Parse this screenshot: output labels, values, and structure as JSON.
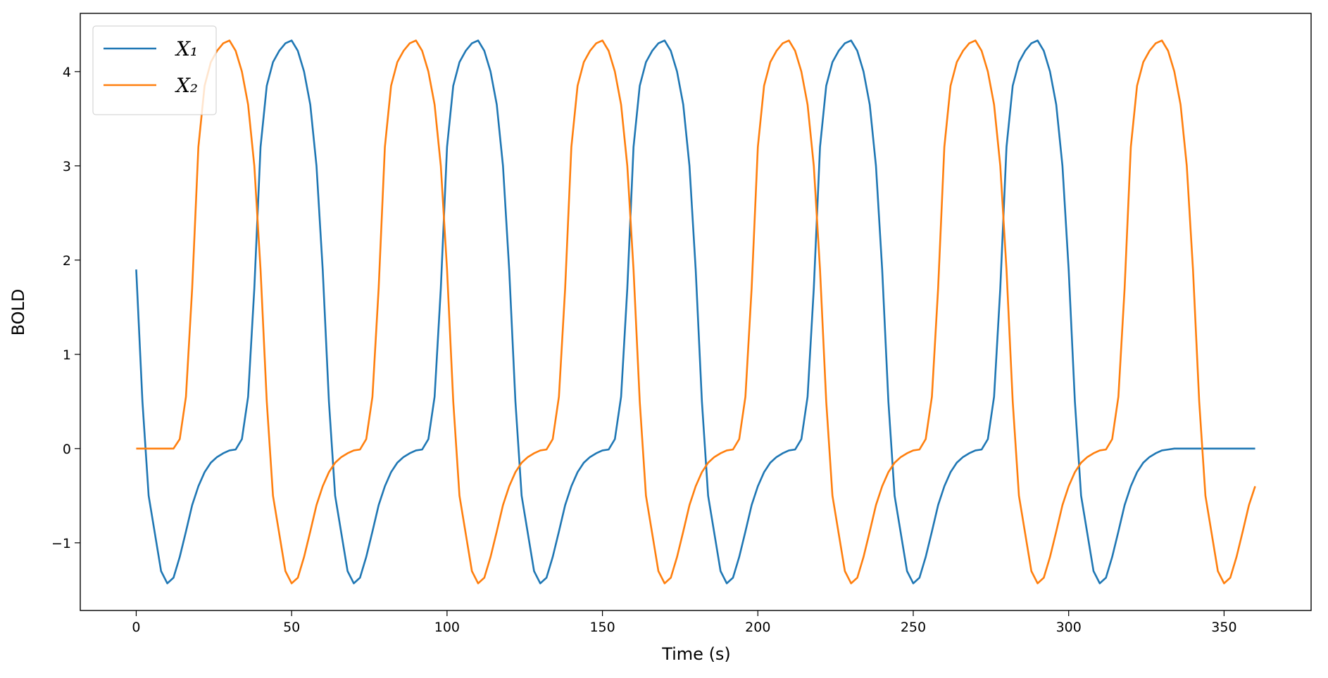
{
  "chart_data": {
    "type": "line",
    "x_label": "Time (s)",
    "y_label": "BOLD",
    "x": [
      0,
      2,
      4,
      6,
      8,
      10,
      12,
      14,
      16,
      18,
      20,
      22,
      24,
      26,
      28,
      30,
      32,
      34,
      36,
      38,
      40,
      42,
      44,
      46,
      48,
      50,
      52,
      54,
      56,
      58,
      60,
      62,
      64,
      66,
      68,
      70,
      72,
      74,
      76,
      78,
      80,
      82,
      84,
      86,
      88,
      90,
      92,
      94,
      96,
      98,
      100,
      102,
      104,
      106,
      108,
      110,
      112,
      114,
      116,
      118,
      120,
      122,
      124,
      126,
      128,
      130,
      132,
      134,
      136,
      138,
      140,
      142,
      144,
      146,
      148,
      150,
      152,
      154,
      156,
      158,
      160,
      162,
      164,
      166,
      168,
      170,
      172,
      174,
      176,
      178,
      180,
      182,
      184,
      186,
      188,
      190,
      192,
      194,
      196,
      198,
      200,
      202,
      204,
      206,
      208,
      210,
      212,
      214,
      216,
      218,
      220,
      222,
      224,
      226,
      228,
      230,
      232,
      234,
      236,
      238,
      240,
      242,
      244,
      246,
      248,
      250,
      252,
      254,
      256,
      258,
      260,
      262,
      264,
      266,
      268,
      270,
      272,
      274,
      276,
      278,
      280,
      282,
      284,
      286,
      288,
      290,
      292,
      294,
      296,
      298,
      300,
      302,
      304,
      306,
      308,
      310,
      312,
      314,
      316,
      318,
      320,
      322,
      324,
      326,
      328,
      330,
      332,
      334,
      336,
      338,
      340,
      342,
      344,
      346,
      348,
      350,
      352,
      354,
      356,
      358,
      360
    ],
    "series": [
      {
        "name": "X₁",
        "color": "#1f77b4",
        "values": [
          1.9,
          0.5,
          -0.5,
          -0.9,
          -1.3,
          -1.43,
          -1.37,
          -1.15,
          -0.88,
          -0.6,
          -0.4,
          -0.25,
          -0.15,
          -0.09,
          -0.05,
          -0.02,
          -0.01,
          0.1,
          0.55,
          1.7,
          3.2,
          3.85,
          4.1,
          4.22,
          4.3,
          4.33,
          4.22,
          4.0,
          3.65,
          3.0,
          1.9,
          0.5,
          -0.5,
          -0.9,
          -1.3,
          -1.43,
          -1.37,
          -1.15,
          -0.88,
          -0.6,
          -0.4,
          -0.25,
          -0.15,
          -0.09,
          -0.05,
          -0.02,
          -0.01,
          0.1,
          0.55,
          1.7,
          3.2,
          3.85,
          4.1,
          4.22,
          4.3,
          4.33,
          4.22,
          4.0,
          3.65,
          3.0,
          1.9,
          0.5,
          -0.5,
          -0.9,
          -1.3,
          -1.43,
          -1.37,
          -1.15,
          -0.88,
          -0.6,
          -0.4,
          -0.25,
          -0.15,
          -0.09,
          -0.05,
          -0.02,
          -0.01,
          0.1,
          0.55,
          1.7,
          3.2,
          3.85,
          4.1,
          4.22,
          4.3,
          4.33,
          4.22,
          4.0,
          3.65,
          3.0,
          1.9,
          0.5,
          -0.5,
          -0.9,
          -1.3,
          -1.43,
          -1.37,
          -1.15,
          -0.88,
          -0.6,
          -0.4,
          -0.25,
          -0.15,
          -0.09,
          -0.05,
          -0.02,
          -0.01,
          0.1,
          0.55,
          1.7,
          3.2,
          3.85,
          4.1,
          4.22,
          4.3,
          4.33,
          4.22,
          4.0,
          3.65,
          3.0,
          1.9,
          0.5,
          -0.5,
          -0.9,
          -1.3,
          -1.43,
          -1.37,
          -1.15,
          -0.88,
          -0.6,
          -0.4,
          -0.25,
          -0.15,
          -0.09,
          -0.05,
          -0.02,
          -0.01,
          0.1,
          0.55,
          1.7,
          3.2,
          3.85,
          4.1,
          4.22,
          4.3,
          4.33,
          4.22,
          4.0,
          3.65,
          3.0,
          1.9,
          0.5,
          -0.5,
          -0.9,
          -1.3,
          -1.43,
          -1.37,
          -1.15,
          -0.88,
          -0.6,
          -0.4,
          -0.25,
          -0.15,
          -0.09,
          -0.05,
          -0.02,
          -0.01,
          0,
          0,
          0,
          0,
          0,
          0,
          0,
          0,
          0,
          0,
          0,
          0,
          0,
          0
        ]
      },
      {
        "name": "X₂",
        "color": "#ff7f0e",
        "values": [
          0,
          0,
          0,
          0,
          0,
          0,
          0,
          0.1,
          0.55,
          1.7,
          3.2,
          3.85,
          4.1,
          4.22,
          4.3,
          4.33,
          4.22,
          4.0,
          3.65,
          3.0,
          1.9,
          0.5,
          -0.5,
          -0.9,
          -1.3,
          -1.43,
          -1.37,
          -1.15,
          -0.88,
          -0.6,
          -0.4,
          -0.25,
          -0.15,
          -0.09,
          -0.05,
          -0.02,
          -0.01,
          0.1,
          0.55,
          1.7,
          3.2,
          3.85,
          4.1,
          4.22,
          4.3,
          4.33,
          4.22,
          4.0,
          3.65,
          3.0,
          1.9,
          0.5,
          -0.5,
          -0.9,
          -1.3,
          -1.43,
          -1.37,
          -1.15,
          -0.88,
          -0.6,
          -0.4,
          -0.25,
          -0.15,
          -0.09,
          -0.05,
          -0.02,
          -0.01,
          0.1,
          0.55,
          1.7,
          3.2,
          3.85,
          4.1,
          4.22,
          4.3,
          4.33,
          4.22,
          4.0,
          3.65,
          3.0,
          1.9,
          0.5,
          -0.5,
          -0.9,
          -1.3,
          -1.43,
          -1.37,
          -1.15,
          -0.88,
          -0.6,
          -0.4,
          -0.25,
          -0.15,
          -0.09,
          -0.05,
          -0.02,
          -0.01,
          0.1,
          0.55,
          1.7,
          3.2,
          3.85,
          4.1,
          4.22,
          4.3,
          4.33,
          4.22,
          4.0,
          3.65,
          3.0,
          1.9,
          0.5,
          -0.5,
          -0.9,
          -1.3,
          -1.43,
          -1.37,
          -1.15,
          -0.88,
          -0.6,
          -0.4,
          -0.25,
          -0.15,
          -0.09,
          -0.05,
          -0.02,
          -0.01,
          0.1,
          0.55,
          1.7,
          3.2,
          3.85,
          4.1,
          4.22,
          4.3,
          4.33,
          4.22,
          4.0,
          3.65,
          3.0,
          1.9,
          0.5,
          -0.5,
          -0.9,
          -1.3,
          -1.43,
          -1.37,
          -1.15,
          -0.88,
          -0.6,
          -0.4,
          -0.25,
          -0.15,
          -0.09,
          -0.05,
          -0.02,
          -0.01,
          0.1,
          0.55,
          1.7,
          3.2,
          3.85,
          4.1,
          4.22,
          4.3,
          4.33,
          4.22,
          4.0,
          3.65,
          3.0,
          1.9,
          0.5,
          -0.5,
          -0.9,
          -1.3,
          -1.43,
          -1.37,
          -1.15,
          -0.88,
          -0.6,
          -0.4
        ]
      }
    ],
    "xlim": [
      -18,
      378
    ],
    "xticks": [
      0,
      50,
      100,
      150,
      200,
      250,
      300,
      350
    ],
    "ylim": [
      -1.718,
      4.618
    ],
    "yticks": [
      {
        "value": -1,
        "label": "−1"
      },
      0,
      1,
      2,
      3,
      4
    ],
    "grid": false,
    "legend": "upper left"
  }
}
